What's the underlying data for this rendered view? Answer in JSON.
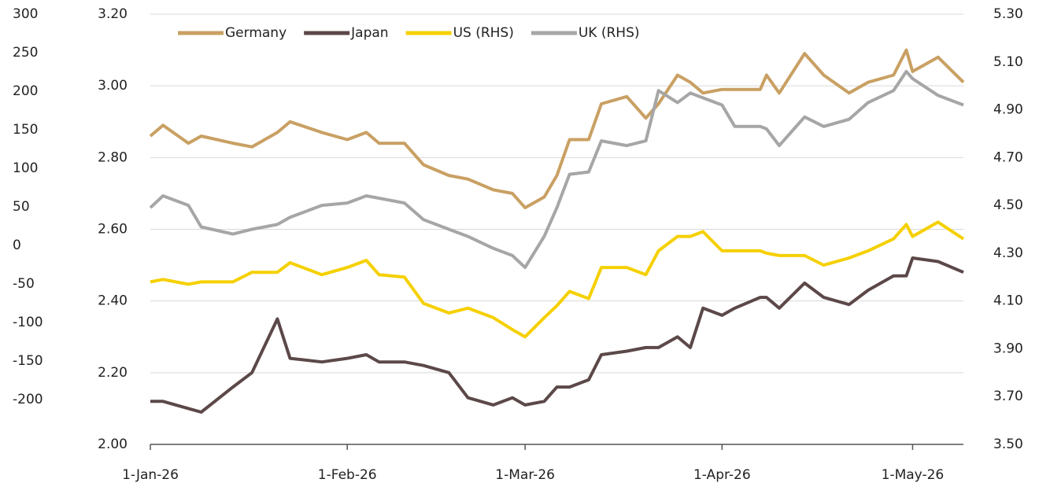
{
  "chart_data": {
    "type": "line",
    "x": [
      "2026-01-01",
      "2026-01-03",
      "2026-01-07",
      "2026-01-09",
      "2026-01-14",
      "2026-01-17",
      "2026-01-21",
      "2026-01-23",
      "2026-01-28",
      "2026-02-01",
      "2026-02-04",
      "2026-02-06",
      "2026-02-10",
      "2026-02-13",
      "2026-02-17",
      "2026-02-20",
      "2026-02-24",
      "2026-02-27",
      "2026-03-01",
      "2026-03-04",
      "2026-03-06",
      "2026-03-08",
      "2026-03-11",
      "2026-03-13",
      "2026-03-17",
      "2026-03-20",
      "2026-03-22",
      "2026-03-25",
      "2026-03-27",
      "2026-03-29",
      "2026-04-01",
      "2026-04-03",
      "2026-04-07",
      "2026-04-08",
      "2026-04-10",
      "2026-04-14",
      "2026-04-17",
      "2026-04-21",
      "2026-04-24",
      "2026-04-28",
      "2026-04-30",
      "2026-05-01",
      "2026-05-05",
      "2026-05-09"
    ],
    "series": [
      {
        "name": "Germany",
        "color": "#c9a063",
        "axis": "y",
        "values": [
          2.86,
          2.89,
          2.84,
          2.86,
          2.84,
          2.83,
          2.87,
          2.9,
          2.87,
          2.85,
          2.87,
          2.84,
          2.84,
          2.78,
          2.75,
          2.74,
          2.71,
          2.7,
          2.66,
          2.69,
          2.75,
          2.85,
          2.85,
          2.95,
          2.97,
          2.91,
          2.95,
          3.03,
          3.01,
          2.98,
          2.99,
          2.99,
          2.99,
          3.03,
          2.98,
          3.09,
          3.03,
          2.98,
          3.01,
          3.03,
          3.1,
          3.04,
          3.08,
          3.01
        ]
      },
      {
        "name": "Japan",
        "color": "#5c4848",
        "axis": "y",
        "values": [
          2.12,
          2.12,
          2.1,
          2.09,
          2.16,
          2.2,
          2.35,
          2.24,
          2.23,
          2.24,
          2.25,
          2.23,
          2.23,
          2.22,
          2.2,
          2.13,
          2.11,
          2.13,
          2.11,
          2.12,
          2.16,
          2.16,
          2.18,
          2.25,
          2.26,
          2.27,
          2.27,
          2.3,
          2.27,
          2.38,
          2.36,
          2.38,
          2.41,
          2.41,
          2.38,
          2.45,
          2.41,
          2.39,
          2.43,
          2.47,
          2.47,
          2.52,
          2.51,
          2.48
        ]
      },
      {
        "name": "US (RHS)",
        "color": "#f5d000",
        "axis": "y2",
        "values": [
          4.18,
          4.19,
          4.17,
          4.18,
          4.18,
          4.22,
          4.22,
          4.26,
          4.21,
          4.24,
          4.27,
          4.21,
          4.2,
          4.09,
          4.05,
          4.07,
          4.03,
          3.98,
          3.95,
          4.03,
          4.08,
          4.14,
          4.11,
          4.24,
          4.24,
          4.21,
          4.31,
          4.37,
          4.37,
          4.39,
          4.31,
          4.31,
          4.31,
          4.3,
          4.29,
          4.29,
          4.25,
          4.28,
          4.31,
          4.36,
          4.42,
          4.37,
          4.43,
          4.36
        ]
      },
      {
        "name": "UK (RHS)",
        "color": "#a6a6a6",
        "axis": "y2",
        "values": [
          4.49,
          4.54,
          4.5,
          4.41,
          4.38,
          4.4,
          4.42,
          4.45,
          4.5,
          4.51,
          4.54,
          4.53,
          4.51,
          4.44,
          4.4,
          4.37,
          4.32,
          4.29,
          4.24,
          4.37,
          4.49,
          4.63,
          4.64,
          4.77,
          4.75,
          4.77,
          4.98,
          4.93,
          4.97,
          4.95,
          4.92,
          4.83,
          4.83,
          4.82,
          4.75,
          4.87,
          4.83,
          4.86,
          4.93,
          4.98,
          5.06,
          5.03,
          4.96,
          4.92
        ]
      }
    ],
    "xlim": [
      "2026-01-01",
      "2026-05-09"
    ],
    "xticks": [
      {
        "value": "2026-01-01",
        "label": "1-Jan-26"
      },
      {
        "value": "2026-02-01",
        "label": "1-Feb-26"
      },
      {
        "value": "2026-03-01",
        "label": "1-Mar-26"
      },
      {
        "value": "2026-04-01",
        "label": "1-Apr-26"
      },
      {
        "value": "2026-05-01",
        "label": "1-May-26"
      }
    ],
    "ylim": [
      2.0,
      3.2
    ],
    "yticks": [
      {
        "value": 2.0,
        "label": "2.00"
      },
      {
        "value": 2.2,
        "label": "2.20"
      },
      {
        "value": 2.4,
        "label": "2.40"
      },
      {
        "value": 2.6,
        "label": "2.60"
      },
      {
        "value": 2.8,
        "label": "2.80"
      },
      {
        "value": 3.0,
        "label": "3.00"
      },
      {
        "value": 3.2,
        "label": "3.20"
      }
    ],
    "y2lim": [
      3.5,
      5.3
    ],
    "y2ticks": [
      {
        "value": 3.5,
        "label": "3.50"
      },
      {
        "value": 3.7,
        "label": "3.70"
      },
      {
        "value": 3.9,
        "label": "3.90"
      },
      {
        "value": 4.1,
        "label": "4.10"
      },
      {
        "value": 4.3,
        "label": "4.30"
      },
      {
        "value": 4.5,
        "label": "4.50"
      },
      {
        "value": 4.7,
        "label": "4.70"
      },
      {
        "value": 4.9,
        "label": "4.90"
      },
      {
        "value": 5.1,
        "label": "5.10"
      },
      {
        "value": 5.3,
        "label": "5.30"
      }
    ],
    "y3lim": [
      -200,
      300
    ],
    "y3ticks": [
      300,
      250,
      200,
      150,
      100,
      50,
      0,
      -50,
      -100,
      -150,
      -200
    ],
    "grid": true,
    "legend": "top-left"
  }
}
